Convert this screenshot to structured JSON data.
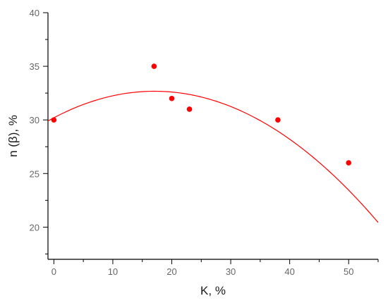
{
  "chart_data": {
    "type": "scatter",
    "title": "",
    "xlabel": "K, %",
    "ylabel": "n (β), %",
    "xlim": [
      -1,
      55
    ],
    "ylim": [
      17,
      40
    ],
    "x_ticks": [
      0,
      10,
      20,
      30,
      40,
      50
    ],
    "y_ticks": [
      20,
      25,
      30,
      35,
      40
    ],
    "grid": false,
    "series": [
      {
        "type": "scatter",
        "color": "#ff0000",
        "points": [
          {
            "x": 0,
            "y": 30
          },
          {
            "x": 17,
            "y": 35
          },
          {
            "x": 20,
            "y": 32
          },
          {
            "x": 23,
            "y": 31
          },
          {
            "x": 38,
            "y": 30
          },
          {
            "x": 50,
            "y": 26
          }
        ]
      },
      {
        "type": "line",
        "color": "#ff0000",
        "fit": "quadratic",
        "coefficients": {
          "a": -0.0085,
          "b": 0.29,
          "c": 30.2
        },
        "x_range": [
          -1,
          55
        ]
      }
    ]
  }
}
